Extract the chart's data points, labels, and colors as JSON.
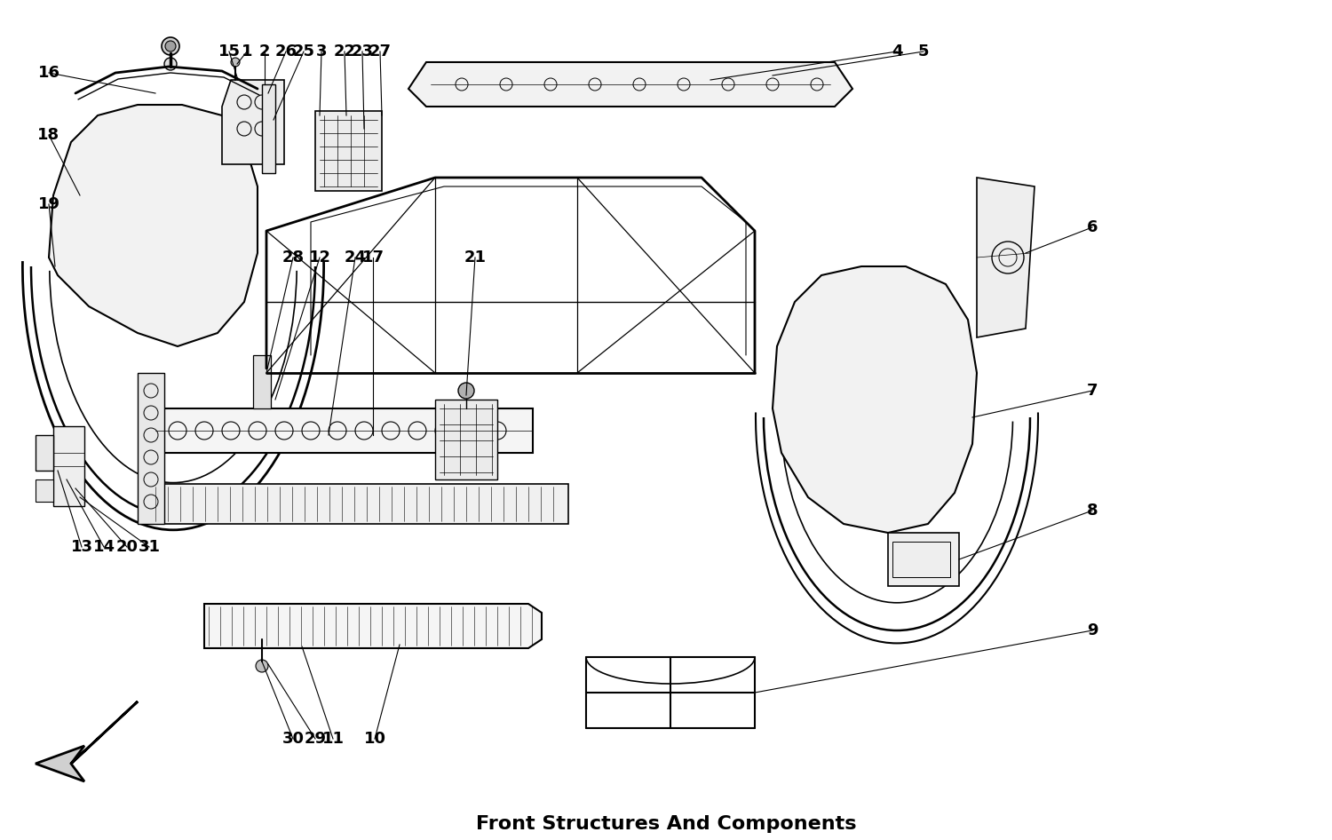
{
  "title": "Front Structures And Components",
  "bg": "#ffffff",
  "lc": "#000000",
  "figsize": [
    15.0,
    9.46
  ],
  "dpi": 100,
  "callouts": {
    "16": [
      55,
      82,
      175,
      105
    ],
    "18": [
      55,
      152,
      90,
      220
    ],
    "19": [
      55,
      230,
      62,
      300
    ],
    "15": [
      258,
      58,
      268,
      90
    ],
    "1": [
      278,
      58,
      267,
      72
    ],
    "2": [
      298,
      58,
      298,
      95
    ],
    "26": [
      322,
      58,
      302,
      105
    ],
    "25": [
      342,
      58,
      308,
      135
    ],
    "3": [
      362,
      58,
      360,
      130
    ],
    "22": [
      388,
      58,
      390,
      130
    ],
    "23": [
      408,
      58,
      410,
      145
    ],
    "27": [
      428,
      58,
      430,
      130
    ],
    "4": [
      1010,
      58,
      800,
      90
    ],
    "5": [
      1040,
      58,
      870,
      85
    ],
    "6": [
      1230,
      256,
      1155,
      285
    ],
    "7": [
      1230,
      440,
      1095,
      470
    ],
    "8": [
      1230,
      575,
      1080,
      630
    ],
    "9": [
      1230,
      710,
      850,
      780
    ],
    "28": [
      330,
      290,
      300,
      420
    ],
    "12": [
      360,
      290,
      310,
      450
    ],
    "24": [
      400,
      290,
      370,
      490
    ],
    "17": [
      420,
      290,
      420,
      490
    ],
    "21": [
      535,
      290,
      525,
      445
    ],
    "13": [
      92,
      616,
      65,
      530
    ],
    "14": [
      117,
      616,
      75,
      540
    ],
    "20": [
      143,
      616,
      85,
      550
    ],
    "31": [
      168,
      616,
      90,
      560
    ],
    "30": [
      330,
      832,
      295,
      745
    ],
    "29": [
      355,
      832,
      302,
      748
    ],
    "11": [
      375,
      832,
      340,
      728
    ],
    "10": [
      422,
      832,
      450,
      726
    ]
  }
}
